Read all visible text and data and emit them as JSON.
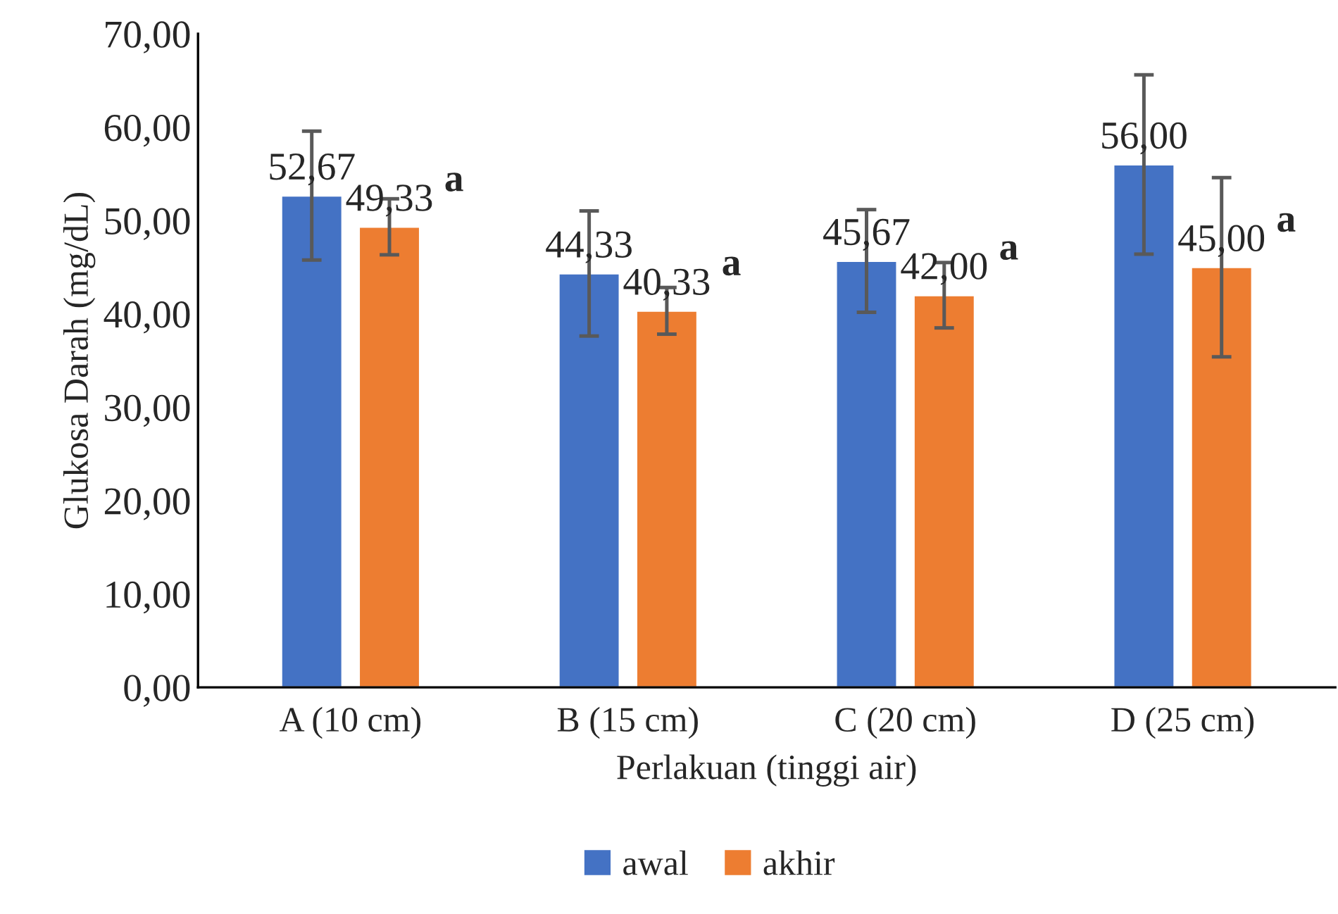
{
  "chart_data": {
    "type": "bar",
    "xlabel": "Perlakuan (tinggi air)",
    "ylabel": "Glukosa Darah (mg/dL)",
    "categories": [
      "A (10 cm)",
      "B (15 cm)",
      "C (20 cm)",
      "D (25 cm)"
    ],
    "series": [
      {
        "name": "awal",
        "color": "#4472c4",
        "values": [
          52.67,
          44.33,
          45.67,
          56.0
        ],
        "errors": [
          6.9,
          6.7,
          5.5,
          9.6
        ],
        "value_labels": [
          "52,67",
          "44,33",
          "45,67",
          "56,00"
        ]
      },
      {
        "name": "akhir",
        "color": "#ed7d31",
        "values": [
          49.33,
          40.33,
          42.0,
          45.0
        ],
        "errors": [
          3.0,
          2.5,
          3.5,
          9.6
        ],
        "value_labels": [
          "49,33",
          "40,33",
          "42,00",
          "45,00"
        ]
      }
    ],
    "annotations": [
      "a",
      "a",
      "a",
      "a"
    ],
    "ylim": [
      0,
      70
    ],
    "yticks": [
      {
        "value": 0,
        "label": "0,00"
      },
      {
        "value": 10,
        "label": "10,00"
      },
      {
        "value": 20,
        "label": "20,00"
      },
      {
        "value": 30,
        "label": "30,00"
      },
      {
        "value": 40,
        "label": "40,00"
      },
      {
        "value": 50,
        "label": "50,00"
      },
      {
        "value": 60,
        "label": "60,00"
      },
      {
        "value": 70,
        "label": "70,00"
      }
    ],
    "grid": false,
    "legend": "bottom"
  }
}
